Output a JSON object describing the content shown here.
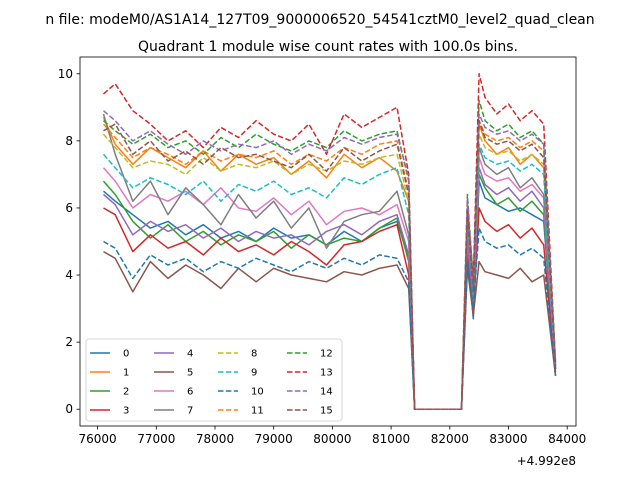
{
  "chart_data": {
    "type": "line",
    "suptitle": "n file: modeM0/AS1A14_127T09_9000006520_54541cztM0_level2_quad_clean",
    "title": "Quadrant 1 module wise count rates with 100.0s bins.",
    "xlabel": "",
    "ylabel": "",
    "offset_text": "+4.992e8",
    "xlim": [
      75700,
      84150
    ],
    "ylim": [
      -0.5,
      10.5
    ],
    "xticks": [
      76000,
      77000,
      78000,
      79000,
      80000,
      81000,
      82000,
      83000,
      84000
    ],
    "xtick_labels": [
      "76000",
      "77000",
      "78000",
      "79000",
      "80000",
      "81000",
      "82000",
      "83000",
      "84000"
    ],
    "yticks": [
      0,
      2,
      4,
      6,
      8,
      10
    ],
    "ytick_labels": [
      "0",
      "2",
      "4",
      "6",
      "8",
      "10"
    ],
    "grid": false,
    "legend_position": "lower-left",
    "legend_columns": 4,
    "series": [
      {
        "name": "0",
        "color": "#1f77b4",
        "style": "solid",
        "x": [
          76100,
          76300,
          76600,
          76900,
          77200,
          77500,
          77800,
          78100,
          78400,
          78700,
          79000,
          79300,
          79600,
          79900,
          80200,
          80500,
          80800,
          81100,
          81300,
          81400,
          81500,
          82200,
          82300,
          82400,
          82500,
          82600,
          82800,
          83000,
          83200,
          83400,
          83600,
          83800
        ],
        "y": [
          6.5,
          6.2,
          5.8,
          5.4,
          5.6,
          5.2,
          5.5,
          5.1,
          5.3,
          5.0,
          5.4,
          5.1,
          5.2,
          4.9,
          5.3,
          5.0,
          5.4,
          5.6,
          4.5,
          0,
          0,
          0,
          4.8,
          2.7,
          6.8,
          6.3,
          6.1,
          5.9,
          6.0,
          5.8,
          5.6,
          1.2
        ]
      },
      {
        "name": "1",
        "color": "#ff7f0e",
        "style": "solid",
        "x": [
          76100,
          76300,
          76600,
          76900,
          77200,
          77500,
          77800,
          78100,
          78400,
          78700,
          79000,
          79300,
          79600,
          79900,
          80200,
          80500,
          80800,
          81100,
          81300,
          81400,
          81500,
          82200,
          82300,
          82400,
          82500,
          82600,
          82800,
          83000,
          83200,
          83400,
          83600,
          83800
        ],
        "y": [
          8.7,
          7.9,
          7.3,
          7.8,
          7.5,
          7.2,
          7.7,
          7.1,
          7.6,
          7.3,
          7.5,
          7.0,
          7.4,
          6.9,
          7.6,
          7.2,
          7.5,
          7.1,
          6.2,
          0,
          0,
          0,
          5.8,
          3.5,
          8.5,
          8.0,
          7.6,
          7.8,
          7.3,
          7.6,
          7.2,
          1.3
        ]
      },
      {
        "name": "2",
        "color": "#2ca02c",
        "style": "solid",
        "x": [
          76100,
          76300,
          76600,
          76900,
          77200,
          77500,
          77800,
          78100,
          78400,
          78700,
          79000,
          79300,
          79600,
          79900,
          80200,
          80500,
          80800,
          81100,
          81300,
          81400,
          81500,
          82200,
          82300,
          82400,
          82500,
          82600,
          82800,
          83000,
          83200,
          83400,
          83600,
          83800
        ],
        "y": [
          6.8,
          6.4,
          5.6,
          5.1,
          5.5,
          5.0,
          5.3,
          4.9,
          5.2,
          5.0,
          5.3,
          4.8,
          5.2,
          4.9,
          5.1,
          5.0,
          5.4,
          5.7,
          4.4,
          0,
          0,
          0,
          5.2,
          3.0,
          7.0,
          6.6,
          6.1,
          6.3,
          5.9,
          6.2,
          5.8,
          1.1
        ]
      },
      {
        "name": "3",
        "color": "#d62728",
        "style": "solid",
        "x": [
          76100,
          76300,
          76600,
          76900,
          77200,
          77500,
          77800,
          78100,
          78400,
          78700,
          79000,
          79300,
          79600,
          79900,
          80200,
          80500,
          80800,
          81100,
          81300,
          81400,
          81500,
          82200,
          82300,
          82400,
          82500,
          82600,
          82800,
          83000,
          83200,
          83400,
          83600,
          83800
        ],
        "y": [
          6.0,
          5.8,
          4.7,
          5.2,
          4.8,
          5.0,
          4.6,
          5.1,
          4.7,
          4.9,
          4.6,
          5.0,
          4.7,
          4.3,
          4.9,
          5.0,
          5.3,
          5.5,
          4.0,
          0,
          0,
          0,
          4.6,
          2.9,
          6.0,
          5.6,
          5.3,
          5.5,
          5.1,
          5.4,
          4.9,
          1.0
        ]
      },
      {
        "name": "4",
        "color": "#9467bd",
        "style": "solid",
        "x": [
          76100,
          76300,
          76600,
          76900,
          77200,
          77500,
          77800,
          78100,
          78400,
          78700,
          79000,
          79300,
          79600,
          79900,
          80200,
          80500,
          80800,
          81100,
          81300,
          81400,
          81500,
          82200,
          82300,
          82400,
          82500,
          82600,
          82800,
          83000,
          83200,
          83400,
          83600,
          83800
        ],
        "y": [
          6.4,
          6.1,
          5.2,
          5.6,
          5.3,
          5.5,
          5.1,
          5.4,
          5.0,
          5.3,
          5.1,
          5.2,
          4.9,
          5.3,
          5.5,
          5.2,
          5.6,
          5.8,
          4.6,
          0,
          0,
          0,
          5.0,
          3.1,
          7.2,
          6.7,
          6.4,
          6.6,
          6.2,
          6.5,
          6.0,
          1.2
        ]
      },
      {
        "name": "5",
        "color": "#8c564b",
        "style": "solid",
        "x": [
          76100,
          76300,
          76600,
          76900,
          77200,
          77500,
          77800,
          78100,
          78400,
          78700,
          79000,
          79300,
          79600,
          79900,
          80200,
          80500,
          80800,
          81100,
          81300,
          81400,
          81500,
          82200,
          82300,
          82400,
          82500,
          82600,
          82800,
          83000,
          83200,
          83400,
          83600,
          83800
        ],
        "y": [
          4.7,
          4.5,
          3.5,
          4.4,
          3.9,
          4.3,
          4.0,
          3.6,
          4.2,
          3.8,
          4.2,
          4.0,
          3.9,
          3.8,
          4.1,
          4.0,
          4.2,
          4.3,
          3.6,
          0,
          0,
          0,
          4.2,
          2.8,
          4.4,
          4.1,
          4.0,
          3.9,
          4.2,
          3.8,
          4.0,
          1.0
        ]
      },
      {
        "name": "6",
        "color": "#e377c2",
        "style": "solid",
        "x": [
          76100,
          76300,
          76600,
          76900,
          77200,
          77500,
          77800,
          78100,
          78400,
          78700,
          79000,
          79300,
          79600,
          79900,
          80200,
          80500,
          80800,
          81100,
          81300,
          81400,
          81500,
          82200,
          82300,
          82400,
          82500,
          82600,
          82800,
          83000,
          83200,
          83400,
          83600,
          83800
        ],
        "y": [
          7.2,
          6.8,
          6.0,
          6.4,
          6.2,
          6.5,
          6.1,
          6.6,
          6.0,
          5.9,
          6.3,
          5.8,
          6.2,
          5.5,
          5.9,
          6.0,
          5.8,
          6.1,
          5.0,
          0,
          0,
          0,
          5.5,
          3.3,
          7.5,
          7.0,
          6.8,
          6.9,
          6.5,
          6.7,
          6.3,
          1.3
        ]
      },
      {
        "name": "7",
        "color": "#7f7f7f",
        "style": "solid",
        "x": [
          76100,
          76300,
          76600,
          76900,
          77200,
          77500,
          77800,
          78100,
          78400,
          78700,
          79000,
          79300,
          79600,
          79900,
          80200,
          80500,
          80800,
          81100,
          81300,
          81400,
          81500,
          82200,
          82300,
          82400,
          82500,
          82600,
          82800,
          83000,
          83200,
          83400,
          83600,
          83800
        ],
        "y": [
          8.8,
          7.6,
          6.2,
          6.8,
          5.8,
          6.6,
          6.1,
          5.5,
          6.4,
          5.7,
          6.2,
          5.4,
          6.0,
          4.8,
          5.6,
          5.8,
          5.9,
          6.5,
          5.2,
          0,
          0,
          0,
          5.6,
          3.2,
          7.8,
          7.3,
          7.0,
          7.2,
          6.6,
          6.9,
          6.4,
          1.4
        ]
      },
      {
        "name": "8",
        "color": "#bcbd22",
        "style": "dashed",
        "x": [
          76100,
          76300,
          76600,
          76900,
          77200,
          77500,
          77800,
          78100,
          78400,
          78700,
          79000,
          79300,
          79600,
          79900,
          80200,
          80500,
          80800,
          81100,
          81300,
          81400,
          81500,
          82200,
          82300,
          82400,
          82500,
          82600,
          82800,
          83000,
          83200,
          83400,
          83600,
          83800
        ],
        "y": [
          8.2,
          7.8,
          7.2,
          7.4,
          7.3,
          7.0,
          7.5,
          7.1,
          7.3,
          7.2,
          7.4,
          7.0,
          7.3,
          7.1,
          7.4,
          7.3,
          7.5,
          7.6,
          6.2,
          0,
          0,
          0,
          6.0,
          3.6,
          8.2,
          7.8,
          7.6,
          7.7,
          7.4,
          7.6,
          7.3,
          1.3
        ]
      },
      {
        "name": "9",
        "color": "#17becf",
        "style": "dashed",
        "x": [
          76100,
          76300,
          76600,
          76900,
          77200,
          77500,
          77800,
          78100,
          78400,
          78700,
          79000,
          79300,
          79600,
          79900,
          80200,
          80500,
          80800,
          81100,
          81300,
          81400,
          81500,
          82200,
          82300,
          82400,
          82500,
          82600,
          82800,
          83000,
          83200,
          83400,
          83600,
          83800
        ],
        "y": [
          7.6,
          7.2,
          6.6,
          6.9,
          6.7,
          6.4,
          6.8,
          6.2,
          6.7,
          6.5,
          6.8,
          6.4,
          6.6,
          6.3,
          6.9,
          6.7,
          7.0,
          7.2,
          5.8,
          0,
          0,
          0,
          5.8,
          3.4,
          7.9,
          7.5,
          7.3,
          7.4,
          7.1,
          7.3,
          7.0,
          1.2
        ]
      },
      {
        "name": "10",
        "color": "#1f77b4",
        "style": "dashed",
        "x": [
          76100,
          76300,
          76600,
          76900,
          77200,
          77500,
          77800,
          78100,
          78400,
          78700,
          79000,
          79300,
          79600,
          79900,
          80200,
          80500,
          80800,
          81100,
          81300,
          81400,
          81500,
          82200,
          82300,
          82400,
          82500,
          82600,
          82800,
          83000,
          83200,
          83400,
          83600,
          83800
        ],
        "y": [
          5.0,
          4.8,
          3.9,
          4.6,
          4.3,
          4.5,
          4.1,
          4.4,
          4.2,
          4.5,
          4.3,
          4.1,
          4.4,
          4.2,
          4.5,
          4.3,
          4.6,
          4.5,
          3.8,
          0,
          0,
          0,
          4.4,
          3.0,
          5.4,
          5.0,
          4.8,
          4.9,
          4.6,
          4.8,
          4.5,
          1.0
        ]
      },
      {
        "name": "11",
        "color": "#ff7f0e",
        "style": "dashed",
        "x": [
          76100,
          76300,
          76600,
          76900,
          77200,
          77500,
          77800,
          78100,
          78400,
          78700,
          79000,
          79300,
          79600,
          79900,
          80200,
          80500,
          80800,
          81100,
          81300,
          81400,
          81500,
          82200,
          82300,
          82400,
          82500,
          82600,
          82800,
          83000,
          83200,
          83400,
          83600,
          83800
        ],
        "y": [
          8.5,
          8.1,
          7.5,
          7.8,
          7.6,
          7.3,
          7.7,
          7.4,
          7.6,
          7.5,
          7.7,
          7.3,
          7.6,
          7.4,
          7.8,
          7.6,
          7.9,
          8.0,
          6.5,
          0,
          0,
          0,
          6.2,
          3.7,
          8.6,
          8.2,
          8.0,
          8.1,
          7.8,
          8.0,
          7.7,
          1.3
        ]
      },
      {
        "name": "12",
        "color": "#2ca02c",
        "style": "dashed",
        "x": [
          76100,
          76300,
          76600,
          76900,
          77200,
          77500,
          77800,
          78100,
          78400,
          78700,
          79000,
          79300,
          79600,
          79900,
          80200,
          80500,
          80800,
          81100,
          81300,
          81400,
          81500,
          82200,
          82300,
          82400,
          82500,
          82600,
          82800,
          83000,
          83200,
          83400,
          83600,
          83800
        ],
        "y": [
          8.6,
          8.3,
          7.9,
          8.2,
          7.8,
          8.0,
          7.6,
          8.1,
          7.8,
          8.2,
          7.9,
          7.7,
          8.0,
          7.8,
          8.3,
          8.0,
          8.2,
          8.3,
          6.8,
          0,
          0,
          0,
          6.4,
          3.8,
          9.2,
          8.6,
          8.3,
          8.5,
          8.1,
          8.3,
          7.9,
          1.4
        ]
      },
      {
        "name": "13",
        "color": "#d62728",
        "style": "dashed",
        "x": [
          76100,
          76300,
          76600,
          76900,
          77200,
          77500,
          77800,
          78100,
          78400,
          78700,
          79000,
          79300,
          79600,
          79900,
          80200,
          80500,
          80800,
          81100,
          81300,
          81400,
          81500,
          82200,
          82300,
          82400,
          82500,
          82600,
          82800,
          83000,
          83200,
          83400,
          83600,
          83800
        ],
        "y": [
          9.4,
          9.7,
          8.9,
          8.5,
          8.0,
          8.3,
          7.8,
          8.4,
          8.1,
          8.6,
          8.2,
          8.0,
          8.5,
          7.6,
          8.8,
          8.4,
          8.7,
          9.0,
          7.0,
          0,
          0,
          0,
          6.0,
          3.9,
          10.0,
          9.3,
          8.8,
          9.1,
          8.6,
          8.9,
          8.5,
          1.4
        ]
      },
      {
        "name": "14",
        "color": "#9467bd",
        "style": "dashed",
        "x": [
          76100,
          76300,
          76600,
          76900,
          77200,
          77500,
          77800,
          78100,
          78400,
          78700,
          79000,
          79300,
          79600,
          79900,
          80200,
          80500,
          80800,
          81100,
          81300,
          81400,
          81500,
          82200,
          82300,
          82400,
          82500,
          82600,
          82800,
          83000,
          83200,
          83400,
          83600,
          83800
        ],
        "y": [
          8.9,
          8.6,
          8.0,
          8.3,
          7.9,
          7.6,
          8.0,
          7.7,
          7.9,
          7.8,
          8.0,
          7.6,
          7.9,
          7.7,
          8.1,
          7.9,
          8.1,
          8.2,
          6.9,
          0,
          0,
          0,
          6.3,
          3.6,
          8.8,
          8.4,
          8.2,
          8.3,
          8.0,
          8.2,
          7.9,
          1.3
        ]
      },
      {
        "name": "15",
        "color": "#8c564b",
        "style": "dashed",
        "x": [
          76100,
          76300,
          76600,
          76900,
          77200,
          77500,
          77800,
          78100,
          78400,
          78700,
          79000,
          79300,
          79600,
          79900,
          80200,
          80500,
          80800,
          81100,
          81300,
          81400,
          81500,
          82200,
          82300,
          82400,
          82500,
          82600,
          82800,
          83000,
          83200,
          83400,
          83600,
          83800
        ],
        "y": [
          8.3,
          8.5,
          7.6,
          8.0,
          7.4,
          7.7,
          7.3,
          7.8,
          7.5,
          7.6,
          7.4,
          7.2,
          7.6,
          7.1,
          7.8,
          7.4,
          7.7,
          7.9,
          6.4,
          0,
          0,
          0,
          5.9,
          3.5,
          8.6,
          8.1,
          7.9,
          8.0,
          7.7,
          7.9,
          7.5,
          1.2
        ]
      }
    ]
  }
}
